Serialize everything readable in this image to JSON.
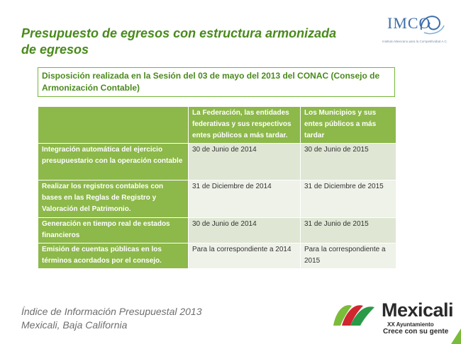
{
  "title": "Presupuesto de egresos con estructura armonizada de egresos",
  "imco_logo": {
    "name": "IMCO",
    "subtitle": "Instituto Mexicano para la Competitividad A.C.",
    "color": "#3f6fa9"
  },
  "notice": "Disposición realizada en la Sesión del 03 de mayo del 2013 del CONAC (Consejo de Armonización Contable)",
  "table": {
    "headers": [
      "",
      "La Federación, las entidades federativas  y sus respectivos entes públicos a más tardar.",
      "Los Municipios y sus entes públicos a más tardar"
    ],
    "rows": [
      {
        "label": "Integración automática del ejercicio presupuestario con la operación contable",
        "federacion": "30 de Junio de 2014",
        "municipios": "30 de Junio de 2015"
      },
      {
        "label": "Realizar los registros contables con bases en las Reglas de Registro y Valoración del Patrimonio.",
        "federacion": "31 de Diciembre de 2014",
        "municipios": "31 de Diciembre de 2015"
      },
      {
        "label": "Generación en tiempo real de estados financieros",
        "federacion": "30 de Junio de 2014",
        "municipios": "31 de Junio de 2015"
      },
      {
        "label": "Emisión de cuentas públicas en los términos acordados por el consejo.",
        "federacion": "Para la correspondiente  a 2014",
        "municipios": "Para la correspondiente  a 2015"
      }
    ]
  },
  "footer": {
    "line1": "Índice de Información Presupuestal 2013",
    "line2": "Mexicali, Baja California"
  },
  "mexicali_logo": {
    "name": "Mexicali",
    "line1": "XX Ayuntamiento",
    "line2": "Crece con su gente"
  },
  "colors": {
    "accent_green": "#4a8a1c",
    "table_header": "#8db84a",
    "row_odd": "#dfe6d4",
    "row_even": "#eef2e8"
  }
}
